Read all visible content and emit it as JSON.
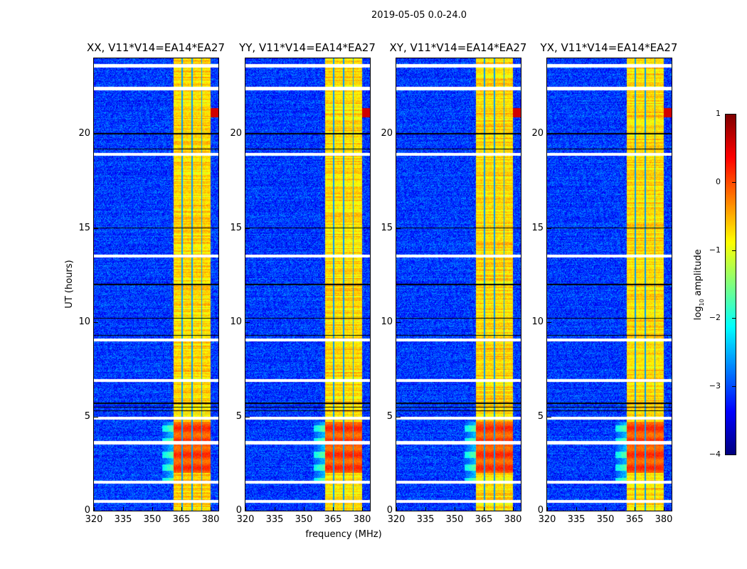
{
  "chart_data": {
    "type": "heatmap",
    "title": "2019-05-05 0.0-24.0",
    "xlabel": "frequency (MHz)",
    "ylabel": "UT (hours)",
    "xlim": [
      320,
      384
    ],
    "ylim": [
      0,
      24
    ],
    "xticks": [
      "320",
      "335",
      "350",
      "365",
      "380"
    ],
    "xtick_values": [
      320,
      335,
      350,
      365,
      380
    ],
    "yticks": [
      "0",
      "5",
      "10",
      "15",
      "20"
    ],
    "ytick_values": [
      0,
      5,
      10,
      15,
      20
    ],
    "panels": [
      {
        "title": "XX, V11*V14=EA14*EA27",
        "band_onset_mhz": 361
      },
      {
        "title": "YY, V11*V14=EA14*EA27",
        "band_onset_mhz": 361
      },
      {
        "title": "XY, V11*V14=EA14*EA27",
        "band_onset_mhz": 361
      },
      {
        "title": "YX, V11*V14=EA14*EA27",
        "band_onset_mhz": 361
      }
    ],
    "features": {
      "background_log_amp": -3.1,
      "band_mhz": [
        361,
        380
      ],
      "band_log_amp": -0.7,
      "band_gaps_mhz": [
        365.4,
        370.4,
        375.4
      ],
      "peak_hours": [
        2.0,
        4.7
      ],
      "peak_log_amp": 0.4,
      "rfi_hour": 21.1,
      "rfi_mhz": [
        380,
        384
      ],
      "flagged_hours": [
        23.6,
        22.4,
        18.9,
        13.5,
        9.05,
        6.9,
        4.9,
        3.6,
        1.5,
        0.5
      ],
      "dark_rows_hours": [
        5.3,
        5.5,
        5.7,
        9.3,
        10.2,
        12.0,
        15.0,
        19.2,
        20.0
      ]
    },
    "colorbar": {
      "label": "log10 amplitude",
      "label_main": "log",
      "label_sub": "10",
      "label_rest": " amplitude",
      "range": [
        -4,
        1
      ],
      "ticks": [
        "1",
        "0",
        "−1",
        "−2",
        "−3",
        "−4"
      ],
      "tick_values": [
        1,
        0,
        -1,
        -2,
        -3,
        -4
      ],
      "colormap": "jet"
    }
  }
}
